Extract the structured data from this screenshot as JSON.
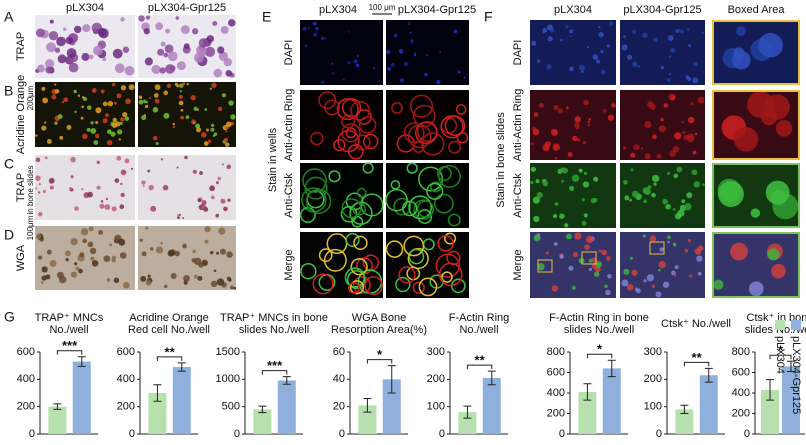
{
  "panel_labels": [
    "A",
    "B",
    "C",
    "D",
    "E",
    "F",
    "G"
  ],
  "panel_abcd": {
    "columns": [
      "pLX304",
      "pLX304-Gpr125"
    ],
    "rows": [
      "TRAP",
      "Acridine Orange",
      "TRAP",
      "WGA"
    ],
    "scale_bars": [
      "200μm",
      "100μm"
    ],
    "side_note": "in bone slides"
  },
  "panel_e": {
    "columns": [
      "pLX304",
      "pLX304-Gpr125"
    ],
    "scale_bar": "100 μm",
    "rows": [
      "DAPI",
      "Anti-Actin Ring",
      "Anti-Ctsk",
      "Merge"
    ],
    "side_label": "Stain in wells"
  },
  "panel_f": {
    "columns": [
      "pLX304",
      "pLX304-Gpr125",
      "Boxed Area"
    ],
    "rows": [
      "DAPI",
      "Anti-Actin Ring",
      "Anti-Ctsk",
      "Merge"
    ],
    "side_label": "Stain in bone slides"
  },
  "legend": [
    {
      "name": "pLX304",
      "color": "#b6e0ad"
    },
    {
      "name": "pLX304-Gpr125",
      "color": "#8fb0dd"
    }
  ],
  "chart_data": [
    {
      "type": "bar",
      "title": [
        "TRAP⁺ MNCs",
        "No./well"
      ],
      "values": [
        200,
        530
      ],
      "errors": [
        20,
        35
      ],
      "significance": "***",
      "ylim": [
        0,
        600
      ],
      "yticks": [
        0,
        200,
        400,
        600
      ]
    },
    {
      "type": "bar",
      "title": [
        "Acridine Orange",
        "Red cell No./well"
      ],
      "values": [
        300,
        490
      ],
      "errors": [
        60,
        30
      ],
      "significance": "**",
      "ylim": [
        0,
        600
      ],
      "yticks": [
        0,
        200,
        400,
        600
      ]
    },
    {
      "type": "bar",
      "title": [
        "TRAP⁺ MNCs in bone",
        "slides No./well"
      ],
      "values": [
        450,
        980
      ],
      "errors": [
        60,
        70
      ],
      "significance": "***",
      "ylim": [
        0,
        1500
      ],
      "yticks": [
        0,
        500,
        1000,
        1500
      ]
    },
    {
      "type": "bar",
      "title": [
        "WGA Bone",
        "Resorption Area(%)"
      ],
      "values": [
        21,
        40
      ],
      "errors": [
        5,
        10
      ],
      "significance": "*",
      "ylim": [
        0,
        60
      ],
      "yticks": [
        0,
        20,
        40,
        60
      ]
    },
    {
      "type": "bar",
      "title": [
        "F-Actin Ring",
        "No./well"
      ],
      "values": [
        80,
        205
      ],
      "errors": [
        22,
        25
      ],
      "significance": "**",
      "ylim": [
        0,
        300
      ],
      "yticks": [
        0,
        100,
        200,
        300
      ]
    },
    {
      "type": "bar",
      "title": [
        "F-Actin Ring in bone",
        "slides No./well"
      ],
      "values": [
        410,
        640
      ],
      "errors": [
        80,
        80
      ],
      "significance": "*",
      "ylim": [
        0,
        800
      ],
      "yticks": [
        0,
        200,
        400,
        600,
        800
      ]
    },
    {
      "type": "bar",
      "title": [
        "Ctsk⁺ No./well"
      ],
      "values": [
        90,
        215
      ],
      "errors": [
        15,
        25
      ],
      "significance": "**",
      "ylim": [
        0,
        300
      ],
      "yticks": [
        0,
        100,
        200,
        300
      ]
    },
    {
      "type": "bar",
      "title": [
        "Ctsk⁺ in bone",
        "slides No./well"
      ],
      "values": [
        430,
        660
      ],
      "errors": [
        100,
        50
      ],
      "significance": "*",
      "ylim": [
        0,
        800
      ],
      "yticks": [
        0,
        200,
        400,
        600,
        800
      ]
    }
  ]
}
